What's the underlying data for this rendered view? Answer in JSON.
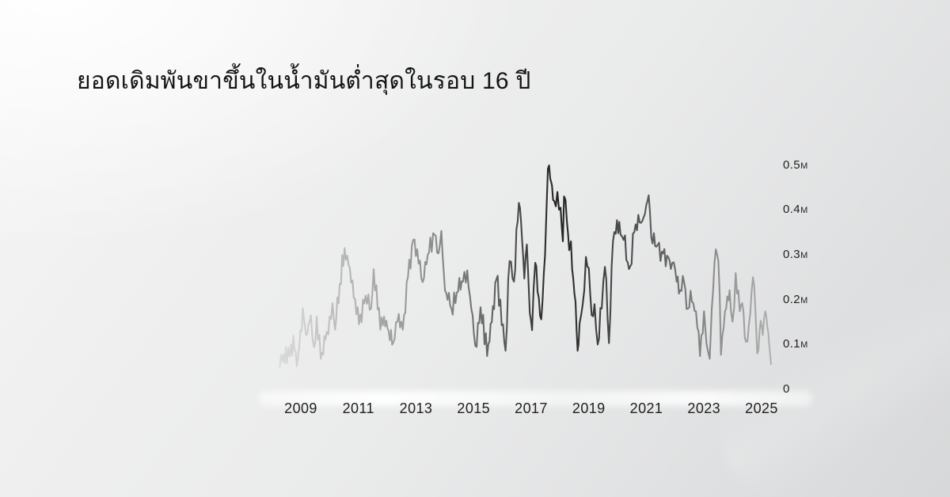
{
  "title": "ยอดเดิมพันขาขึ้นในน้ำมันต่ำสุดในรอบ 16 ปี",
  "background": {
    "base": "#ededee",
    "top_left_glow": "#fafafa",
    "bottom_right": "#d7d8d9",
    "streak": "#ffffff"
  },
  "chart_data": {
    "type": "line",
    "title": "ยอดเดิมพันขาขึ้นในน้ำมันต่ำสุดในรอบ 16 ปี",
    "xlabel": "",
    "ylabel": "",
    "grid": false,
    "legend": false,
    "x_range": [
      2008.2,
      2025.45
    ],
    "y_range_M": [
      0,
      0.52
    ],
    "x_ticks": [
      "2009",
      "2011",
      "2013",
      "2015",
      "2017",
      "2019",
      "2021",
      "2023",
      "2025"
    ],
    "y_ticks": [
      {
        "label": "0.5M",
        "num": "0.5",
        "unit": "M",
        "value": 0.5
      },
      {
        "label": "0.4M",
        "num": "0.4",
        "unit": "M",
        "value": 0.4
      },
      {
        "label": "0.3M",
        "num": "0.3",
        "unit": "M",
        "value": 0.3
      },
      {
        "label": "0.2M",
        "num": "0.2",
        "unit": "M",
        "value": 0.2
      },
      {
        "label": "0.1M",
        "num": "0.1",
        "unit": "M",
        "value": 0.1
      },
      {
        "label": "0",
        "num": "0",
        "unit": "",
        "value": 0
      }
    ],
    "line_style": {
      "stroke_width": 2.1,
      "gradient_axis": "x",
      "gradient_stops": [
        [
          0.0,
          "#dbdbdb"
        ],
        [
          0.05,
          "#cfcfcf"
        ],
        [
          0.13,
          "#b9b9b9"
        ],
        [
          0.22,
          "#a2a2a2"
        ],
        [
          0.31,
          "#8d8d8d"
        ],
        [
          0.4,
          "#707070"
        ],
        [
          0.47,
          "#505050"
        ],
        [
          0.53,
          "#303030"
        ],
        [
          0.565,
          "#222222"
        ],
        [
          0.61,
          "#363636"
        ],
        [
          0.66,
          "#454545"
        ],
        [
          0.72,
          "#525252"
        ],
        [
          0.78,
          "#666666"
        ],
        [
          0.84,
          "#828282"
        ],
        [
          0.9,
          "#959595"
        ],
        [
          0.96,
          "#a8a8a8"
        ],
        [
          1.0,
          "#b6b6b6"
        ]
      ]
    },
    "noise": {
      "amplitude_M": 0.015,
      "step_years": 0.045,
      "seed": 7
    },
    "points": [
      [
        2008.27,
        0.05
      ],
      [
        2008.4,
        0.078
      ],
      [
        2008.52,
        0.058
      ],
      [
        2008.66,
        0.1
      ],
      [
        2008.78,
        0.088
      ],
      [
        2008.9,
        0.07
      ],
      [
        2009.07,
        0.181
      ],
      [
        2009.18,
        0.121
      ],
      [
        2009.35,
        0.165
      ],
      [
        2009.46,
        0.094
      ],
      [
        2009.55,
        0.162
      ],
      [
        2009.69,
        0.068
      ],
      [
        2009.9,
        0.128
      ],
      [
        2010.1,
        0.192
      ],
      [
        2010.19,
        0.133
      ],
      [
        2010.35,
        0.235
      ],
      [
        2010.52,
        0.315
      ],
      [
        2010.61,
        0.298
      ],
      [
        2010.84,
        0.204
      ],
      [
        2011.02,
        0.145
      ],
      [
        2011.25,
        0.209
      ],
      [
        2011.44,
        0.18
      ],
      [
        2011.53,
        0.268
      ],
      [
        2011.76,
        0.133
      ],
      [
        2011.89,
        0.162
      ],
      [
        2012.05,
        0.13
      ],
      [
        2012.21,
        0.104
      ],
      [
        2012.4,
        0.168
      ],
      [
        2012.54,
        0.133
      ],
      [
        2012.72,
        0.25
      ],
      [
        2012.9,
        0.333
      ],
      [
        2013.09,
        0.28
      ],
      [
        2013.23,
        0.239
      ],
      [
        2013.45,
        0.305
      ],
      [
        2013.64,
        0.345
      ],
      [
        2013.78,
        0.303
      ],
      [
        2013.88,
        0.353
      ],
      [
        2013.96,
        0.265
      ],
      [
        2014.05,
        0.215
      ],
      [
        2014.23,
        0.18
      ],
      [
        2014.46,
        0.218
      ],
      [
        2014.63,
        0.24
      ],
      [
        2014.78,
        0.265
      ],
      [
        2014.92,
        0.18
      ],
      [
        2015.06,
        0.097
      ],
      [
        2015.24,
        0.183
      ],
      [
        2015.47,
        0.074
      ],
      [
        2015.63,
        0.15
      ],
      [
        2015.79,
        0.245
      ],
      [
        2016.02,
        0.145
      ],
      [
        2016.11,
        0.086
      ],
      [
        2016.25,
        0.286
      ],
      [
        2016.4,
        0.24
      ],
      [
        2016.53,
        0.374
      ],
      [
        2016.61,
        0.405
      ],
      [
        2016.68,
        0.335
      ],
      [
        2016.76,
        0.247
      ],
      [
        2016.85,
        0.323
      ],
      [
        2016.95,
        0.17
      ],
      [
        2017.03,
        0.132
      ],
      [
        2017.14,
        0.282
      ],
      [
        2017.22,
        0.218
      ],
      [
        2017.35,
        0.156
      ],
      [
        2017.48,
        0.3
      ],
      [
        2017.53,
        0.4
      ],
      [
        2017.58,
        0.492
      ],
      [
        2017.66,
        0.47
      ],
      [
        2017.72,
        0.455
      ],
      [
        2017.8,
        0.42
      ],
      [
        2017.91,
        0.44
      ],
      [
        2018.02,
        0.405
      ],
      [
        2018.1,
        0.33
      ],
      [
        2018.14,
        0.43
      ],
      [
        2018.24,
        0.374
      ],
      [
        2018.32,
        0.31
      ],
      [
        2018.38,
        0.33
      ],
      [
        2018.46,
        0.247
      ],
      [
        2018.54,
        0.195
      ],
      [
        2018.61,
        0.086
      ],
      [
        2018.68,
        0.147
      ],
      [
        2018.79,
        0.19
      ],
      [
        2018.9,
        0.295
      ],
      [
        2019.0,
        0.27
      ],
      [
        2019.1,
        0.165
      ],
      [
        2019.2,
        0.19
      ],
      [
        2019.31,
        0.1
      ],
      [
        2019.45,
        0.18
      ],
      [
        2019.56,
        0.273
      ],
      [
        2019.7,
        0.103
      ],
      [
        2019.84,
        0.33
      ],
      [
        2019.98,
        0.377
      ],
      [
        2020.1,
        0.345
      ],
      [
        2020.21,
        0.333
      ],
      [
        2020.35,
        0.283
      ],
      [
        2020.44,
        0.274
      ],
      [
        2020.58,
        0.35
      ],
      [
        2020.72,
        0.389
      ],
      [
        2020.81,
        0.371
      ],
      [
        2020.9,
        0.383
      ],
      [
        2021.04,
        0.421
      ],
      [
        2021.12,
        0.398
      ],
      [
        2021.17,
        0.339
      ],
      [
        2021.26,
        0.348
      ],
      [
        2021.35,
        0.318
      ],
      [
        2021.44,
        0.327
      ],
      [
        2021.49,
        0.286
      ],
      [
        2021.58,
        0.303
      ],
      [
        2021.67,
        0.274
      ],
      [
        2021.76,
        0.295
      ],
      [
        2021.85,
        0.268
      ],
      [
        2021.95,
        0.283
      ],
      [
        2022.05,
        0.24
      ],
      [
        2022.17,
        0.221
      ],
      [
        2022.31,
        0.239
      ],
      [
        2022.44,
        0.18
      ],
      [
        2022.58,
        0.195
      ],
      [
        2022.72,
        0.174
      ],
      [
        2022.86,
        0.074
      ],
      [
        2023.0,
        0.174
      ],
      [
        2023.09,
        0.101
      ],
      [
        2023.2,
        0.068
      ],
      [
        2023.27,
        0.18
      ],
      [
        2023.41,
        0.312
      ],
      [
        2023.5,
        0.286
      ],
      [
        2023.59,
        0.077
      ],
      [
        2023.73,
        0.174
      ],
      [
        2023.89,
        0.221
      ],
      [
        2023.99,
        0.151
      ],
      [
        2024.1,
        0.259
      ],
      [
        2024.24,
        0.174
      ],
      [
        2024.33,
        0.192
      ],
      [
        2024.46,
        0.106
      ],
      [
        2024.56,
        0.145
      ],
      [
        2024.7,
        0.25
      ],
      [
        2024.79,
        0.168
      ],
      [
        2024.85,
        0.08
      ],
      [
        2024.97,
        0.153
      ],
      [
        2025.04,
        0.121
      ],
      [
        2025.13,
        0.174
      ],
      [
        2025.2,
        0.139
      ],
      [
        2025.27,
        0.097
      ],
      [
        2025.33,
        0.056
      ]
    ]
  }
}
